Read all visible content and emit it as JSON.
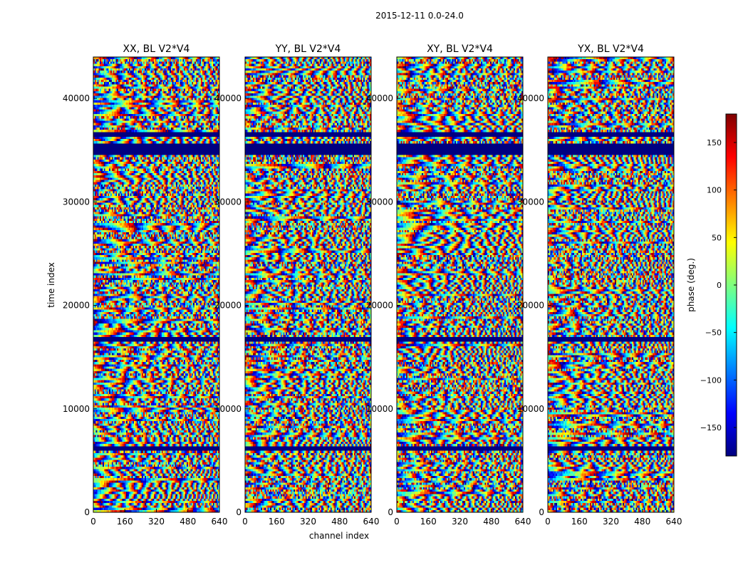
{
  "chart_data": {
    "type": "heatmap",
    "suptitle": "2015-12-11 0.0-24.0",
    "xlabel": "channel index",
    "ylabel": "time index",
    "xlim": [
      0,
      640
    ],
    "ylim": [
      0,
      44000
    ],
    "xticks": [
      0,
      160,
      320,
      480,
      640
    ],
    "yticks": [
      0,
      10000,
      20000,
      30000,
      40000
    ],
    "panels": [
      {
        "title": "XX, BL V2*V4"
      },
      {
        "title": "YY, BL V2*V4"
      },
      {
        "title": "XY, BL V2*V4"
      },
      {
        "title": "YX, BL V2*V4"
      }
    ],
    "colorbar": {
      "label": "phase (deg.)",
      "range": [
        -180,
        180
      ],
      "ticks": [
        -150,
        -100,
        -50,
        0,
        50,
        100,
        150
      ],
      "colormap": [
        "#00007f",
        "#0000ff",
        "#007fff",
        "#00ffff",
        "#7fff7f",
        "#ffff00",
        "#ff7f00",
        "#ff0000",
        "#7f0000"
      ]
    },
    "flagged_time_bands": [
      [
        35000,
        35600
      ],
      [
        34500,
        34900
      ],
      [
        16500,
        17000
      ],
      [
        6000,
        6300
      ],
      [
        36300,
        36700
      ]
    ]
  }
}
